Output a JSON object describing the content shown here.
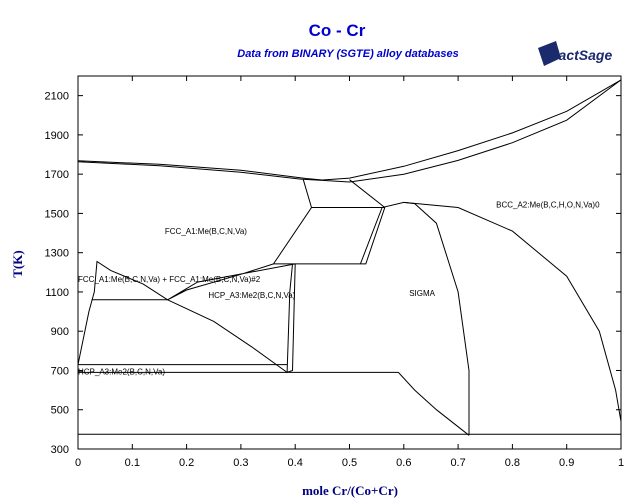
{
  "chart_data": {
    "type": "line",
    "title": "Co - Cr",
    "subtitle": "Data from BINARY (SGTE) alloy databases",
    "xlabel": "mole Cr/(Co+Cr)",
    "ylabel": "T(K)",
    "xlim": [
      0,
      1
    ],
    "ylim": [
      300,
      2200
    ],
    "x_ticks": [
      "0",
      "0.1",
      "0.2",
      "0.3",
      "0.4",
      "0.5",
      "0.6",
      "0.7",
      "0.8",
      "0.9",
      "1"
    ],
    "y_ticks": [
      "300",
      "500",
      "700",
      "900",
      "1100",
      "1300",
      "1500",
      "1700",
      "1900",
      "2100"
    ],
    "grid": false,
    "regions": [
      {
        "label": "FCC_A1:Me(B,C,N,Va)",
        "x": 0.16,
        "y": 1395
      },
      {
        "label": "BCC_A2:Me(B,C,H,O,N,Va)0",
        "x": 0.77,
        "y": 1530
      },
      {
        "label": "FCC_A1:Me(B,C,N,Va) + FCC_A1:Me(B,C,N,Va)#2",
        "x": 0.0,
        "y": 1150
      },
      {
        "label": "HCP_A3:Me2(B,C,N,Va)",
        "x": 0.24,
        "y": 1070
      },
      {
        "label": "SIGMA",
        "x": 0.61,
        "y": 1080
      },
      {
        "label": "HCP_A3:Me2(B,C,N,Va)",
        "x": 0.0,
        "y": 680
      }
    ],
    "series": [
      {
        "values": [
          [
            0,
            1768
          ],
          [
            0.15,
            1750
          ],
          [
            0.3,
            1720
          ],
          [
            0.42,
            1678
          ],
          [
            0.45,
            1670
          ],
          [
            0.5,
            1680
          ],
          [
            0.6,
            1740
          ],
          [
            0.7,
            1820
          ],
          [
            0.8,
            1910
          ],
          [
            0.9,
            2020
          ],
          [
            1,
            2180
          ]
        ]
      },
      {
        "values": [
          [
            0,
            1763
          ],
          [
            0.15,
            1743
          ],
          [
            0.3,
            1710
          ],
          [
            0.41,
            1675
          ],
          [
            0.45,
            1668
          ]
        ]
      },
      {
        "values": [
          [
            0.45,
            1668
          ],
          [
            0.5,
            1660
          ],
          [
            0.6,
            1700
          ],
          [
            0.7,
            1770
          ],
          [
            0.8,
            1860
          ],
          [
            0.9,
            1975
          ],
          [
            1,
            2180
          ]
        ]
      },
      {
        "values": [
          [
            0.415,
            1672
          ],
          [
            0.43,
            1530
          ],
          [
            0.36,
            1243
          ],
          [
            0.4,
            1243
          ],
          [
            0.53,
            1243
          ],
          [
            0.565,
            1530
          ],
          [
            0.5,
            1672
          ]
        ]
      },
      {
        "values": [
          [
            0.43,
            1530
          ],
          [
            0.565,
            1530
          ]
        ]
      },
      {
        "values": [
          [
            0.36,
            1243
          ],
          [
            0.3,
            1190
          ],
          [
            0.2,
            1110
          ],
          [
            0.165,
            1060
          ],
          [
            0.22,
            1150
          ],
          [
            0.4,
            1243
          ]
        ]
      },
      {
        "values": [
          [
            0,
            730
          ],
          [
            0.02,
            1000
          ],
          [
            0.03,
            1100
          ],
          [
            0.035,
            1255
          ],
          [
            0.06,
            1210
          ],
          [
            0.12,
            1140
          ],
          [
            0.165,
            1060
          ]
        ]
      },
      {
        "values": [
          [
            0.025,
            1060
          ],
          [
            0.165,
            1060
          ]
        ]
      },
      {
        "values": [
          [
            0.165,
            1060
          ],
          [
            0.25,
            950
          ],
          [
            0.32,
            820
          ],
          [
            0.385,
            690
          ]
        ]
      },
      {
        "values": [
          [
            0.395,
            1243
          ],
          [
            0.39,
            1100
          ],
          [
            0.385,
            690
          ],
          [
            0.395,
            700
          ],
          [
            0.4,
            1243
          ]
        ]
      },
      {
        "values": [
          [
            0,
            730
          ],
          [
            0.385,
            730
          ]
        ]
      },
      {
        "values": [
          [
            0,
            690
          ],
          [
            0.59,
            690
          ]
        ]
      },
      {
        "values": [
          [
            0.52,
            1243
          ],
          [
            0.56,
            1530
          ],
          [
            0.6,
            1556
          ],
          [
            0.62,
            1550
          ],
          [
            0.66,
            1450
          ],
          [
            0.7,
            1100
          ],
          [
            0.72,
            700
          ],
          [
            0.72,
            370
          ]
        ]
      },
      {
        "values": [
          [
            0.59,
            690
          ],
          [
            0.62,
            600
          ],
          [
            0.66,
            500
          ],
          [
            0.72,
            370
          ]
        ]
      },
      {
        "values": [
          [
            0.6,
            1556
          ],
          [
            0.7,
            1530
          ],
          [
            0.8,
            1410
          ],
          [
            0.9,
            1180
          ],
          [
            0.96,
            900
          ],
          [
            0.99,
            600
          ],
          [
            1,
            440
          ]
        ]
      },
      {
        "values": [
          [
            0,
            375
          ],
          [
            1,
            375
          ]
        ]
      }
    ]
  },
  "brand": {
    "name": "FactSage",
    "mark": "™"
  }
}
